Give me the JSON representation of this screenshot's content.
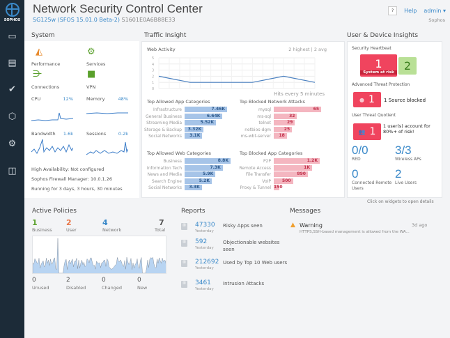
{
  "brand": {
    "logo_text": "SOPHOS"
  },
  "sidebar": {
    "items": [
      {
        "name": "monitor-icon",
        "glyph": "▭"
      },
      {
        "name": "reports-icon",
        "glyph": "▤"
      },
      {
        "name": "protect-icon",
        "glyph": "✔"
      },
      {
        "name": "configure-icon",
        "glyph": "⬡"
      },
      {
        "name": "system-icon",
        "glyph": "⚙"
      },
      {
        "name": "box-icon",
        "glyph": "◫"
      }
    ]
  },
  "header": {
    "title": "Network Security Control Center",
    "model": "SG125w (SFOS 15.01.0 Beta-2)",
    "serial": "S1601E0A6B88E33",
    "help_btn": "?",
    "help_link": "Help",
    "user": "admin ▾",
    "org": "Sophos"
  },
  "system": {
    "title": "System",
    "status": [
      {
        "label": "Performance",
        "icon": "gauge-icon"
      },
      {
        "label": "Services",
        "icon": "gear-check-icon"
      },
      {
        "label": "Connections",
        "icon": "connections-icon"
      },
      {
        "label": "VPN",
        "icon": "vpn-icon"
      }
    ],
    "metrics": [
      {
        "label": "CPU",
        "value": "12%"
      },
      {
        "label": "Memory",
        "value": "48%"
      },
      {
        "label": "Bandwidth",
        "value": "1.6k"
      },
      {
        "label": "Sessions",
        "value": "0.2k"
      }
    ],
    "info": [
      "High Availability: Not configured",
      "Sophos Firewall Manager: 10.0.1.26",
      "Running for 3 days, 3 hours, 30 minutes"
    ]
  },
  "traffic": {
    "title": "Traffic Insight",
    "web_activity": {
      "title": "Web Activity",
      "summary": "2 highest | 2 avg",
      "footer": "Hits every 5 minutes"
    },
    "app_cat": {
      "title": "Top Allowed App Categories",
      "rows": [
        {
          "l": "Infrastructure",
          "v": "7.46K",
          "n": 7.46
        },
        {
          "l": "General Business",
          "v": "6.64K",
          "n": 6.64
        },
        {
          "l": "Streaming Media",
          "v": "5.52K",
          "n": 5.52
        },
        {
          "l": "Storage & Backup",
          "v": "3.32K",
          "n": 3.32
        },
        {
          "l": "Social Networks",
          "v": "3.1K",
          "n": 3.1
        }
      ]
    },
    "net_attacks": {
      "title": "Top Blocked Network Attacks",
      "rows": [
        {
          "l": "mysql",
          "v": "65",
          "n": 65
        },
        {
          "l": "ms-sql",
          "v": "32",
          "n": 32
        },
        {
          "l": "telnet",
          "v": "29",
          "n": 29
        },
        {
          "l": "netbios-dgm",
          "v": "25",
          "n": 25
        },
        {
          "l": "ms-wbt-server",
          "v": "18",
          "n": 18
        }
      ]
    },
    "web_cat": {
      "title": "Top Allowed Web Categories",
      "rows": [
        {
          "l": "Business",
          "v": "8.8K",
          "n": 8.8
        },
        {
          "l": "Information Tech",
          "v": "7.3K",
          "n": 7.3
        },
        {
          "l": "News and Media",
          "v": "5.9K",
          "n": 5.9
        },
        {
          "l": "Search Engine",
          "v": "5.2K",
          "n": 5.2
        },
        {
          "l": "Social Networks",
          "v": "3.3K",
          "n": 3.3
        }
      ]
    },
    "blocked_app": {
      "title": "Top Blocked App Categories",
      "rows": [
        {
          "l": "P2P",
          "v": "1.2K",
          "n": 1200
        },
        {
          "l": "Remote Access",
          "v": "1K",
          "n": 1000
        },
        {
          "l": "File Transfer",
          "v": "890",
          "n": 890
        },
        {
          "l": "VoIP",
          "v": "500",
          "n": 500
        },
        {
          "l": "Proxy & Tunnel",
          "v": "150",
          "n": 150
        }
      ]
    }
  },
  "chart_data": {
    "type": "line",
    "title": "Web Activity",
    "x": [
      0,
      1,
      2,
      3,
      4,
      5
    ],
    "values": [
      2,
      1,
      1,
      1,
      2,
      1
    ],
    "ylim": [
      0,
      5
    ],
    "yticks": [
      "0",
      "1",
      "2",
      "3",
      "4",
      "5"
    ],
    "xlabel": "Hits every 5 minutes",
    "grid": true
  },
  "users": {
    "title": "User & Device Insights",
    "heartbeat": {
      "title": "Security Heartbeat",
      "red": "1",
      "red_label": "System at risk",
      "green": "2"
    },
    "atp": {
      "title": "Advanced Threat Protection",
      "value": "1",
      "text": "1 Source blocked"
    },
    "utq": {
      "title": "User Threat Quotient",
      "value": "1",
      "text": "1 user(s) account for 80%+ of risk!"
    },
    "stats": [
      {
        "n": "0/0",
        "l": "RED"
      },
      {
        "n": "3/3",
        "l": "Wireless APs"
      },
      {
        "n": "0",
        "l": "Connected Remote Users"
      },
      {
        "n": "2",
        "l": "Live Users"
      }
    ],
    "hint": "Click on widgets to open details"
  },
  "policies": {
    "title": "Active Policies",
    "top": [
      {
        "n": "1",
        "l": "Business",
        "c": "#5aa02c"
      },
      {
        "n": "2",
        "l": "User",
        "c": "#e8774a"
      },
      {
        "n": "4",
        "l": "Network",
        "c": "#3a89c9"
      },
      {
        "n": "7",
        "l": "Total",
        "c": "#555"
      }
    ],
    "bottom": [
      {
        "n": "0",
        "l": "Unused"
      },
      {
        "n": "2",
        "l": "Disabled"
      },
      {
        "n": "0",
        "l": "Changed"
      },
      {
        "n": "0",
        "l": "New"
      }
    ]
  },
  "reports": {
    "title": "Reports",
    "items": [
      {
        "n": "47330",
        "y": "Yesterday",
        "d": "Risky Apps seen"
      },
      {
        "n": "592",
        "y": "Yesterday",
        "d": "Objectionable websites seen"
      },
      {
        "n": "212692",
        "y": "Yesterday",
        "d": "Used by Top 10 Web users"
      },
      {
        "n": "3461",
        "y": "Yesterday",
        "d": "Intrusion Attacks"
      }
    ]
  },
  "messages": {
    "title": "Messages",
    "items": [
      {
        "t": "Warning",
        "time": "3d ago",
        "d": "HTTPS,SSH-based management is allowed from the WA..."
      }
    ]
  }
}
